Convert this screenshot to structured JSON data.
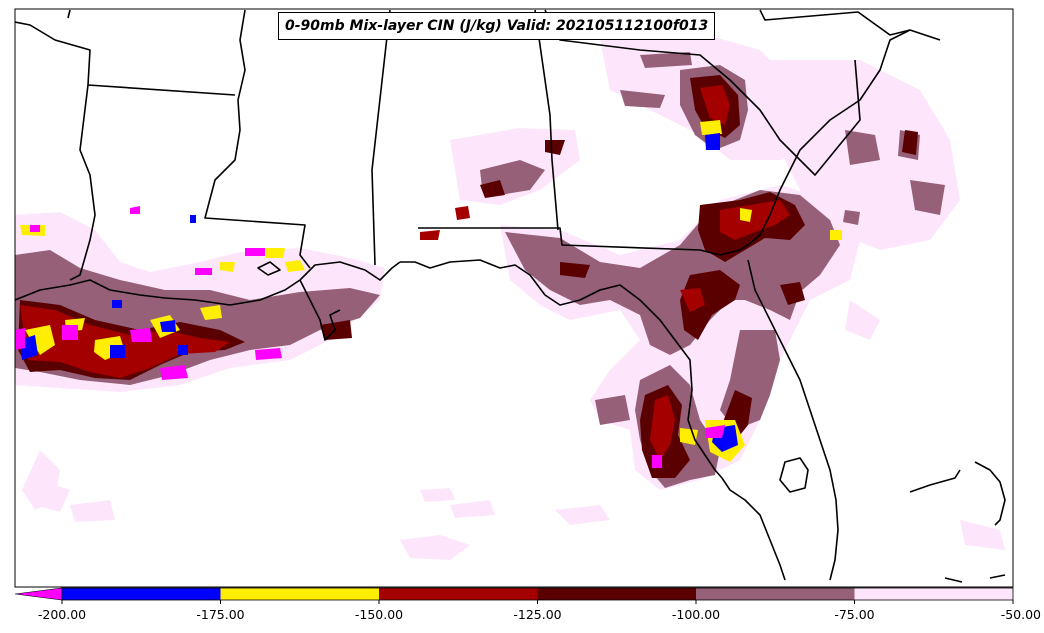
{
  "title": "0-90mb Mix-layer CIN (J/kg) Valid: 202105112100f013",
  "colorbar": {
    "labels": [
      "-200.00",
      "-175.00",
      "-150.00",
      "-125.00",
      "-100.00",
      "-75.00",
      "-50.00"
    ],
    "bins": [
      {
        "from": -200,
        "to": -175,
        "color": "#0000ff"
      },
      {
        "from": -175,
        "to": -150,
        "color": "#ffee00"
      },
      {
        "from": -150,
        "to": -125,
        "color": "#a50000"
      },
      {
        "from": -125,
        "to": -100,
        "color": "#5a0000"
      },
      {
        "from": -100,
        "to": -75,
        "color": "#956078"
      },
      {
        "from": -75,
        "to": -50,
        "color": "#fde6fb"
      }
    ],
    "extend_color": "#ff00ff"
  },
  "colors": {
    "blue": "#0000ff",
    "yellow": "#ffee00",
    "red": "#a50000",
    "darkred": "#5a0000",
    "mauve": "#956078",
    "pale": "#fde6fb",
    "magenta": "#ff00ff"
  }
}
